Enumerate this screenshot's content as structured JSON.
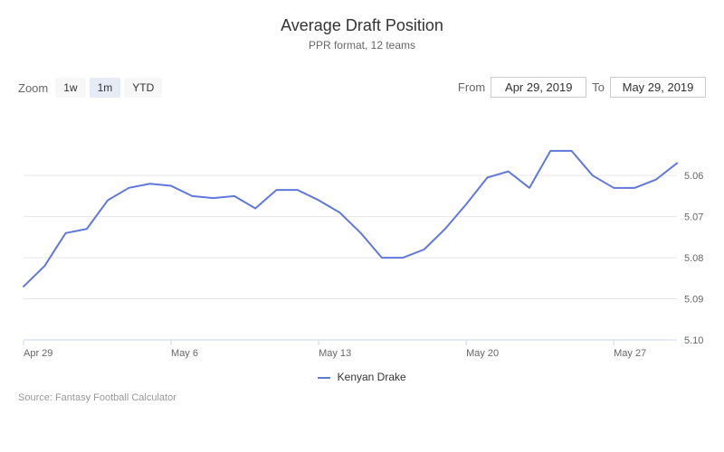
{
  "title": "Average Draft Position",
  "subtitle": "PPR format, 12 teams",
  "zoom": {
    "label": "Zoom",
    "buttons": [
      {
        "label": "1w",
        "active": false
      },
      {
        "label": "1m",
        "active": true
      },
      {
        "label": "YTD",
        "active": false
      }
    ]
  },
  "date_range": {
    "from_label": "From",
    "from_value": "Apr 29, 2019",
    "to_label": "To",
    "to_value": "May 29, 2019"
  },
  "chart": {
    "type": "line",
    "series_name": "Kenyan Drake",
    "line_color": "#6078db",
    "line_width": 2,
    "background_color": "#ffffff",
    "grid_color": "#e6e6e6",
    "axis_line_color": "#ccd6eb",
    "tick_color": "#ccd6eb",
    "axis_label_color": "#666666",
    "axis_font_size": 11,
    "y_inverted": true,
    "ylim": [
      5.045,
      5.1
    ],
    "yticks": [
      5.06,
      5.07,
      5.08,
      5.09,
      5.1
    ],
    "xticks": [
      "Apr 29",
      "May 6",
      "May 13",
      "May 20",
      "May 27"
    ],
    "xtick_indices": [
      0,
      7,
      14,
      21,
      28
    ],
    "data": [
      5.087,
      5.082,
      5.074,
      5.073,
      5.066,
      5.063,
      5.062,
      5.0625,
      5.065,
      5.0655,
      5.065,
      5.068,
      5.0635,
      5.0635,
      5.066,
      5.069,
      5.074,
      5.08,
      5.08,
      5.078,
      5.073,
      5.067,
      5.0605,
      5.059,
      5.063,
      5.054,
      5.054,
      5.06,
      5.063,
      5.063,
      5.061,
      5.057
    ]
  },
  "credits": "Source: Fantasy Football Calculator"
}
